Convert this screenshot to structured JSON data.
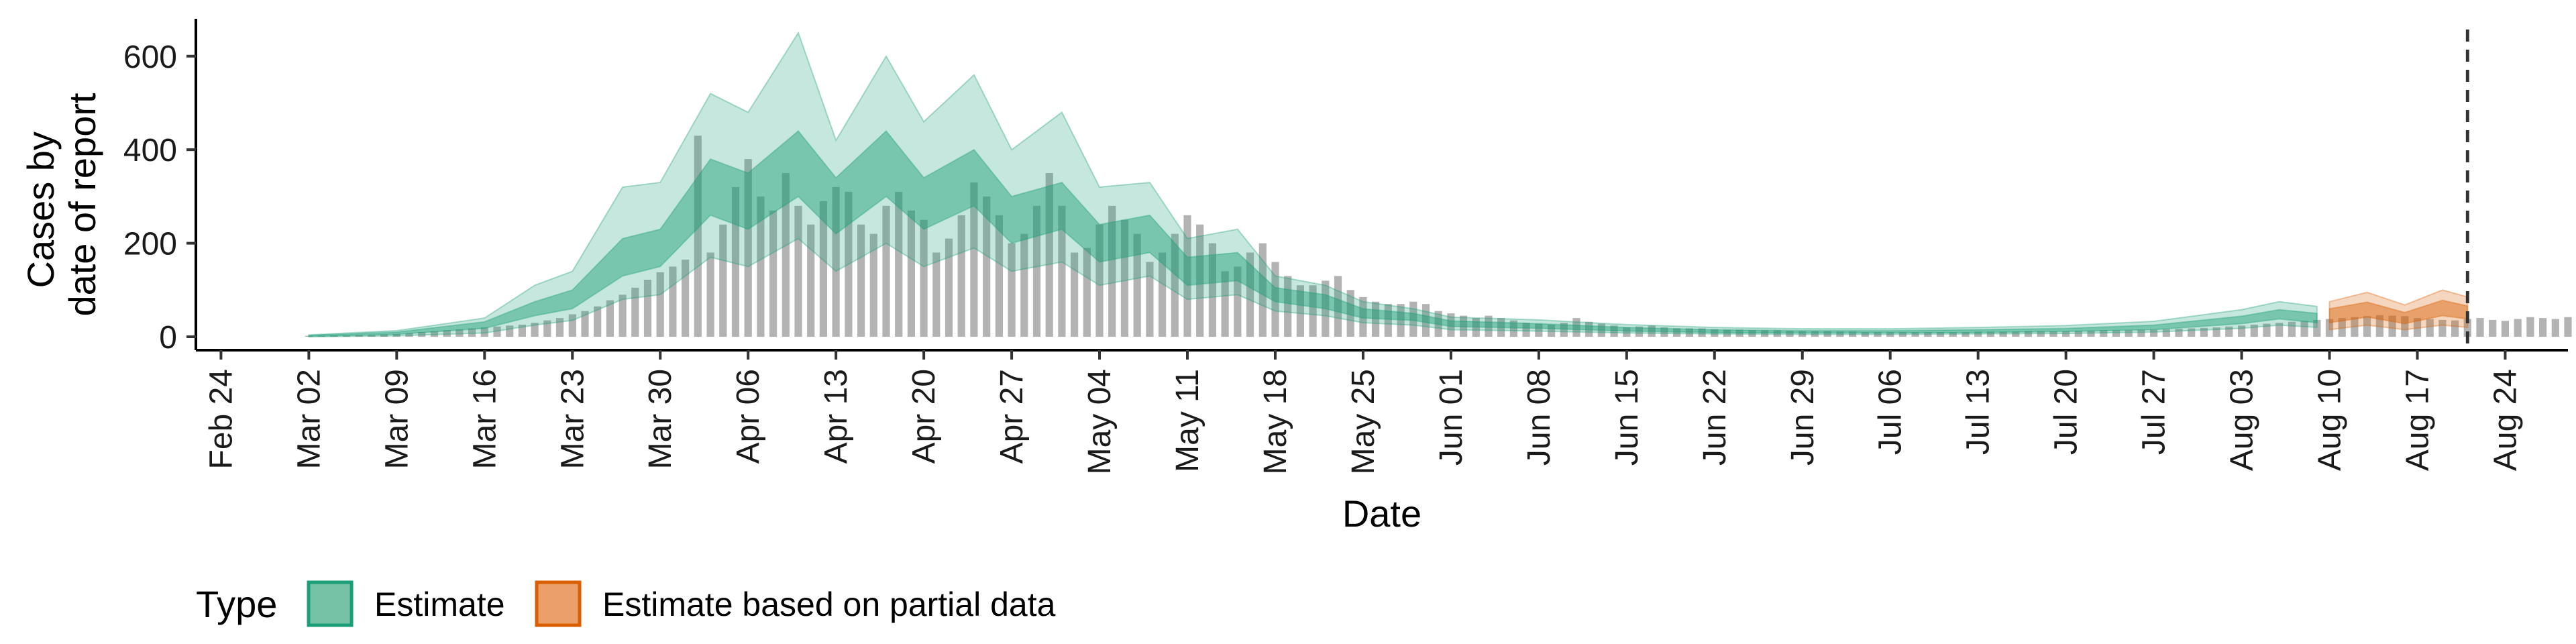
{
  "chart_data": {
    "type": "bar",
    "title": "",
    "xlabel": "Date",
    "ylabel_lines": [
      "Cases by",
      "date of report"
    ],
    "ylim": [
      0,
      680
    ],
    "y_ticks": [
      0,
      200,
      400,
      600
    ],
    "x_range": [
      "2020-02-22",
      "2020-08-29"
    ],
    "x_ticks": [
      {
        "date": "2020-02-24",
        "label": "Feb 24"
      },
      {
        "date": "2020-03-02",
        "label": "Mar 02"
      },
      {
        "date": "2020-03-09",
        "label": "Mar 09"
      },
      {
        "date": "2020-03-16",
        "label": "Mar 16"
      },
      {
        "date": "2020-03-23",
        "label": "Mar 23"
      },
      {
        "date": "2020-03-30",
        "label": "Mar 30"
      },
      {
        "date": "2020-04-06",
        "label": "Apr 06"
      },
      {
        "date": "2020-04-13",
        "label": "Apr 13"
      },
      {
        "date": "2020-04-20",
        "label": "Apr 20"
      },
      {
        "date": "2020-04-27",
        "label": "Apr 27"
      },
      {
        "date": "2020-05-04",
        "label": "May 04"
      },
      {
        "date": "2020-05-11",
        "label": "May 11"
      },
      {
        "date": "2020-05-18",
        "label": "May 18"
      },
      {
        "date": "2020-05-25",
        "label": "May 25"
      },
      {
        "date": "2020-06-01",
        "label": "Jun 01"
      },
      {
        "date": "2020-06-08",
        "label": "Jun 08"
      },
      {
        "date": "2020-06-15",
        "label": "Jun 15"
      },
      {
        "date": "2020-06-22",
        "label": "Jun 22"
      },
      {
        "date": "2020-06-29",
        "label": "Jun 29"
      },
      {
        "date": "2020-07-06",
        "label": "Jul 06"
      },
      {
        "date": "2020-07-13",
        "label": "Jul 13"
      },
      {
        "date": "2020-07-20",
        "label": "Jul 20"
      },
      {
        "date": "2020-07-27",
        "label": "Jul 27"
      },
      {
        "date": "2020-08-03",
        "label": "Aug 03"
      },
      {
        "date": "2020-08-10",
        "label": "Aug 10"
      },
      {
        "date": "2020-08-17",
        "label": "Aug 17"
      },
      {
        "date": "2020-08-24",
        "label": "Aug 24"
      }
    ],
    "dashed_line_date": "2020-08-21",
    "grid": false,
    "legend": {
      "title": "Type",
      "placement": "bottom-left",
      "entries": [
        {
          "label": "Estimate",
          "fill": "#1b9e77",
          "fill_legend": "#76c2a6",
          "stroke": "#1b9e77"
        },
        {
          "label": "Estimate based on partial data",
          "fill": "#d95f02",
          "fill_legend": "#eba06b",
          "stroke": "#d95f02"
        }
      ]
    },
    "colors": {
      "bars": "#b3b3b3",
      "estimate": "#1b9e77",
      "partial": "#d95f02",
      "dashed_line": "#333333"
    },
    "bar_series": {
      "name": "",
      "start_date": "2020-03-02",
      "values": [
        2,
        2,
        3,
        3,
        4,
        4,
        5,
        6,
        8,
        10,
        12,
        14,
        16,
        18,
        20,
        22,
        24,
        26,
        30,
        35,
        40,
        48,
        55,
        65,
        78,
        90,
        105,
        122,
        138,
        150,
        165,
        430,
        180,
        240,
        320,
        380,
        300,
        270,
        350,
        280,
        240,
        290,
        320,
        310,
        240,
        220,
        280,
        310,
        270,
        250,
        180,
        210,
        260,
        330,
        300,
        260,
        200,
        220,
        280,
        350,
        280,
        180,
        190,
        240,
        280,
        250,
        220,
        160,
        180,
        220,
        260,
        240,
        200,
        140,
        150,
        180,
        200,
        160,
        130,
        110,
        110,
        120,
        130,
        100,
        85,
        75,
        70,
        70,
        75,
        70,
        55,
        50,
        45,
        40,
        45,
        40,
        35,
        30,
        28,
        26,
        30,
        40,
        32,
        28,
        24,
        20,
        22,
        24,
        20,
        18,
        18,
        18,
        16,
        15,
        15,
        14,
        14,
        14,
        13,
        12,
        12,
        12,
        11,
        11,
        10,
        10,
        10,
        10,
        10,
        10,
        10,
        10,
        10,
        11,
        11,
        11,
        11,
        12,
        12,
        12,
        12,
        13,
        13,
        14,
        14,
        14,
        15,
        15,
        16,
        17,
        18,
        19,
        20,
        22,
        24,
        26,
        28,
        30,
        32,
        34,
        36,
        38,
        40,
        42,
        44,
        46,
        45,
        44,
        40,
        38,
        36,
        35,
        38,
        40,
        36,
        34,
        38,
        42,
        40,
        38,
        42,
        45,
        48
      ]
    },
    "estimate_band": {
      "name": "Estimate",
      "start_date": "2020-03-02",
      "end_date": "2020-08-09",
      "points": [
        {
          "date": "2020-03-02",
          "lo90": 0,
          "lo50": 1,
          "med": 2,
          "hi50": 3,
          "hi90": 4
        },
        {
          "date": "2020-03-09",
          "lo90": 2,
          "lo50": 5,
          "med": 8,
          "hi50": 10,
          "hi90": 13
        },
        {
          "date": "2020-03-16",
          "lo90": 8,
          "lo50": 18,
          "med": 25,
          "hi50": 32,
          "hi90": 40
        },
        {
          "date": "2020-03-20",
          "lo90": 25,
          "lo50": 45,
          "med": 60,
          "hi50": 75,
          "hi90": 110
        },
        {
          "date": "2020-03-23",
          "lo90": 35,
          "lo50": 60,
          "med": 80,
          "hi50": 100,
          "hi90": 140
        },
        {
          "date": "2020-03-27",
          "lo90": 80,
          "lo50": 130,
          "med": 170,
          "hi50": 210,
          "hi90": 320
        },
        {
          "date": "2020-03-30",
          "lo90": 90,
          "lo50": 150,
          "med": 190,
          "hi50": 230,
          "hi90": 330
        },
        {
          "date": "2020-04-03",
          "lo90": 170,
          "lo50": 260,
          "med": 320,
          "hi50": 380,
          "hi90": 520
        },
        {
          "date": "2020-04-06",
          "lo90": 150,
          "lo50": 230,
          "med": 290,
          "hi50": 350,
          "hi90": 480
        },
        {
          "date": "2020-04-10",
          "lo90": 210,
          "lo50": 300,
          "med": 370,
          "hi50": 440,
          "hi90": 650
        },
        {
          "date": "2020-04-13",
          "lo90": 140,
          "lo50": 220,
          "med": 280,
          "hi50": 340,
          "hi90": 420
        },
        {
          "date": "2020-04-17",
          "lo90": 200,
          "lo50": 300,
          "med": 370,
          "hi50": 440,
          "hi90": 600
        },
        {
          "date": "2020-04-20",
          "lo90": 150,
          "lo50": 230,
          "med": 290,
          "hi50": 340,
          "hi90": 460
        },
        {
          "date": "2020-04-24",
          "lo90": 190,
          "lo50": 280,
          "med": 340,
          "hi50": 400,
          "hi90": 560
        },
        {
          "date": "2020-04-27",
          "lo90": 140,
          "lo50": 200,
          "med": 250,
          "hi50": 300,
          "hi90": 400
        },
        {
          "date": "2020-05-01",
          "lo90": 160,
          "lo50": 230,
          "med": 280,
          "hi50": 330,
          "hi90": 480
        },
        {
          "date": "2020-05-04",
          "lo90": 110,
          "lo50": 160,
          "med": 200,
          "hi50": 240,
          "hi90": 320
        },
        {
          "date": "2020-05-08",
          "lo90": 130,
          "lo50": 180,
          "med": 220,
          "hi50": 260,
          "hi90": 330
        },
        {
          "date": "2020-05-11",
          "lo90": 80,
          "lo50": 110,
          "med": 140,
          "hi50": 170,
          "hi90": 210
        },
        {
          "date": "2020-05-15",
          "lo90": 90,
          "lo50": 120,
          "med": 150,
          "hi50": 180,
          "hi90": 230
        },
        {
          "date": "2020-05-18",
          "lo90": 55,
          "lo50": 75,
          "med": 90,
          "hi50": 105,
          "hi90": 130
        },
        {
          "date": "2020-05-22",
          "lo90": 45,
          "lo50": 60,
          "med": 75,
          "hi50": 90,
          "hi90": 110
        },
        {
          "date": "2020-05-25",
          "lo90": 30,
          "lo50": 40,
          "med": 50,
          "hi50": 60,
          "hi90": 75
        },
        {
          "date": "2020-05-29",
          "lo90": 25,
          "lo50": 35,
          "med": 42,
          "hi50": 50,
          "hi90": 60
        },
        {
          "date": "2020-06-01",
          "lo90": 15,
          "lo50": 22,
          "med": 28,
          "hi50": 34,
          "hi90": 42
        },
        {
          "date": "2020-06-08",
          "lo90": 12,
          "lo50": 18,
          "med": 23,
          "hi50": 28,
          "hi90": 36
        },
        {
          "date": "2020-06-15",
          "lo90": 8,
          "lo50": 12,
          "med": 16,
          "hi50": 20,
          "hi90": 26
        },
        {
          "date": "2020-06-22",
          "lo90": 6,
          "lo50": 9,
          "med": 12,
          "hi50": 15,
          "hi90": 20
        },
        {
          "date": "2020-06-29",
          "lo90": 5,
          "lo50": 8,
          "med": 10,
          "hi50": 13,
          "hi90": 17
        },
        {
          "date": "2020-07-06",
          "lo90": 5,
          "lo50": 8,
          "med": 10,
          "hi50": 13,
          "hi90": 17
        },
        {
          "date": "2020-07-13",
          "lo90": 6,
          "lo50": 9,
          "med": 12,
          "hi50": 15,
          "hi90": 20
        },
        {
          "date": "2020-07-20",
          "lo90": 7,
          "lo50": 11,
          "med": 14,
          "hi50": 18,
          "hi90": 24
        },
        {
          "date": "2020-07-27",
          "lo90": 10,
          "lo50": 15,
          "med": 20,
          "hi50": 25,
          "hi90": 33
        },
        {
          "date": "2020-08-03",
          "lo90": 18,
          "lo50": 28,
          "med": 36,
          "hi50": 44,
          "hi90": 58
        },
        {
          "date": "2020-08-06",
          "lo90": 25,
          "lo50": 38,
          "med": 48,
          "hi50": 58,
          "hi90": 75
        },
        {
          "date": "2020-08-09",
          "lo90": 20,
          "lo50": 30,
          "med": 40,
          "hi50": 50,
          "hi90": 65
        }
      ]
    },
    "partial_band": {
      "name": "Estimate based on partial data",
      "start_date": "2020-08-10",
      "end_date": "2020-08-21",
      "points": [
        {
          "date": "2020-08-10",
          "lo90": 15,
          "lo50": 30,
          "med": 45,
          "hi50": 60,
          "hi90": 75
        },
        {
          "date": "2020-08-13",
          "lo90": 25,
          "lo50": 42,
          "med": 58,
          "hi50": 74,
          "hi90": 95
        },
        {
          "date": "2020-08-16",
          "lo90": 15,
          "lo50": 28,
          "med": 40,
          "hi50": 52,
          "hi90": 68
        },
        {
          "date": "2020-08-19",
          "lo90": 25,
          "lo50": 45,
          "med": 60,
          "hi50": 78,
          "hi90": 100
        },
        {
          "date": "2020-08-21",
          "lo90": 20,
          "lo50": 38,
          "med": 52,
          "hi50": 66,
          "hi90": 85
        }
      ]
    }
  }
}
